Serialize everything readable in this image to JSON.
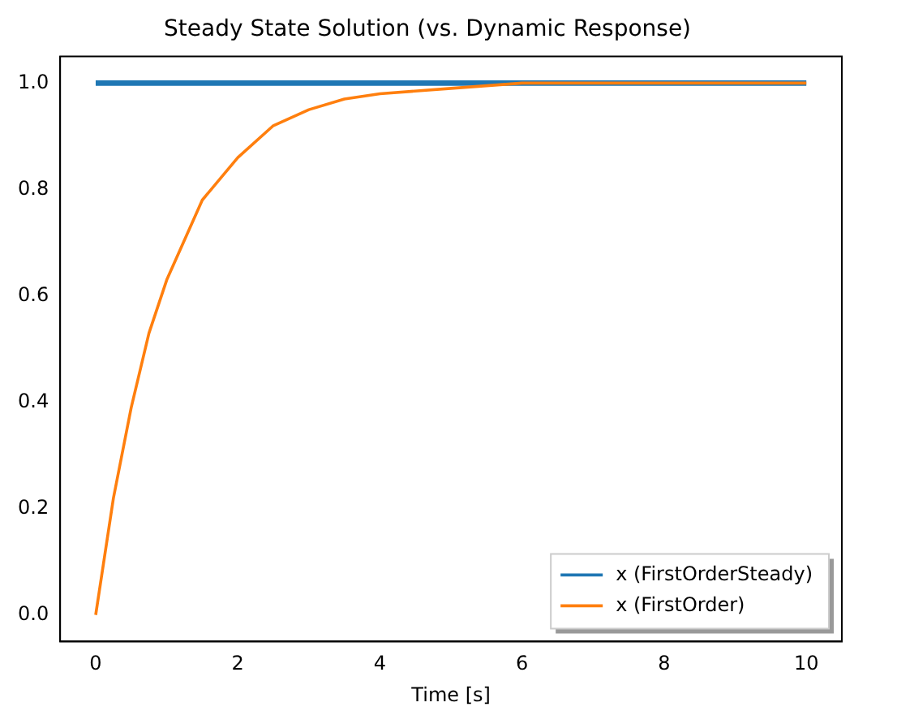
{
  "chart_data": {
    "type": "line",
    "title": "Steady State Solution (vs. Dynamic Response)",
    "xlabel": "Time [s]",
    "xlim": [
      -0.5,
      10.5
    ],
    "xticks": [
      0,
      2,
      4,
      6,
      8,
      10
    ],
    "ylim": [
      -0.05,
      1.05
    ],
    "yticks": [
      {
        "value": 0,
        "label": "0.0"
      },
      {
        "value": 0.2,
        "label": "0.2"
      },
      {
        "value": 0.4,
        "label": "0.4"
      },
      {
        "value": 0.6,
        "label": "0.6"
      },
      {
        "value": 0.8,
        "label": "0.8"
      },
      {
        "value": 1,
        "label": "1.0"
      }
    ],
    "grid": false,
    "legend": "bottom right",
    "marker": "none",
    "line_style": "solid",
    "series": [
      {
        "name": "x (FirstOrderSteady)",
        "color": "#1f77b4",
        "x": [
          0,
          10
        ],
        "values": [
          1.0,
          1.0
        ]
      },
      {
        "name": "x (FirstOrder)",
        "color": "#ff7f0e",
        "x": [
          0,
          0.25,
          0.5,
          0.75,
          1,
          1.5,
          2,
          2.5,
          3,
          3.5,
          4,
          5,
          6,
          8,
          10
        ],
        "values": [
          0,
          0.22,
          0.39,
          0.53,
          0.63,
          0.78,
          0.86,
          0.92,
          0.95,
          0.97,
          0.98,
          0.99,
          1.0,
          1.0,
          1.0
        ]
      }
    ]
  }
}
